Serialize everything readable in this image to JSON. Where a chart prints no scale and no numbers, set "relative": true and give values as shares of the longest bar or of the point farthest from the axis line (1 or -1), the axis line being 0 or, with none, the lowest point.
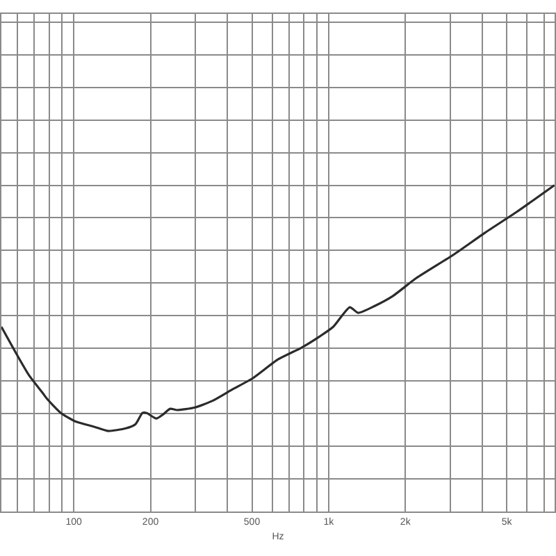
{
  "chart_data": {
    "type": "line",
    "xlabel": "Hz",
    "log": "x",
    "relative": true,
    "grid": true,
    "marker": "none",
    "line_style": "solid",
    "x": [
      52,
      59,
      66.8,
      75.7,
      78.6,
      89,
      100.9,
      120.1,
      136.2,
      160.1,
      174.8,
      186,
      193.1,
      210.7,
      224.5,
      239,
      254.2,
      299,
      351.7,
      418.8,
      505,
      632.4,
      781.9,
      919.8,
      1042,
      1211,
      1305,
      1516,
      1783,
      2204,
      3088,
      4116,
      5486,
      7686
    ],
    "series": [
      {
        "color": "#2b2b2b",
        "values": [
          0.566,
          0.489,
          0.417,
          0.362,
          0.345,
          0.302,
          0.277,
          0.26,
          0.247,
          0.255,
          0.268,
          0.302,
          0.302,
          0.285,
          0.298,
          0.315,
          0.311,
          0.319,
          0.34,
          0.374,
          0.409,
          0.466,
          0.502,
          0.536,
          0.566,
          0.626,
          0.609,
          0.63,
          0.66,
          0.715,
          0.787,
          0.855,
          0.919,
          1.0
        ]
      }
    ],
    "xlim": [
      52,
      7700
    ],
    "xticks": [
      {
        "value": 60,
        "label": null
      },
      {
        "value": 70,
        "label": null
      },
      {
        "value": 80,
        "label": null
      },
      {
        "value": 90,
        "label": null
      },
      100,
      200,
      {
        "value": 300,
        "label": null
      },
      {
        "value": 400,
        "label": null
      },
      500,
      {
        "value": 600,
        "label": null
      },
      {
        "value": 700,
        "label": null
      },
      {
        "value": 800,
        "label": null
      },
      {
        "value": 900,
        "label": null
      },
      {
        "value": 1000,
        "label": "1k"
      },
      {
        "value": 2000,
        "label": "2k"
      },
      {
        "value": 3000,
        "label": null
      },
      {
        "value": 4000,
        "label": null
      },
      {
        "value": 5000,
        "label": "5k"
      },
      {
        "value": 6000,
        "label": null
      },
      {
        "value": 7000,
        "label": null
      }
    ]
  }
}
